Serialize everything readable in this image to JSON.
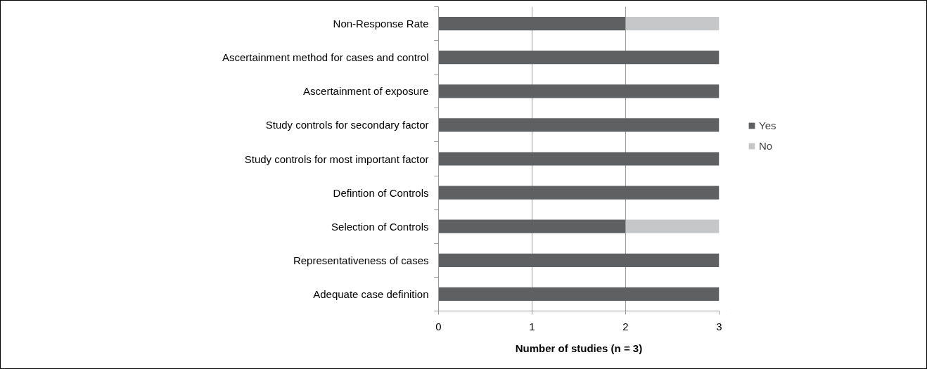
{
  "chart_data": {
    "type": "bar",
    "orientation": "horizontal",
    "stacked": true,
    "categories": [
      "Non-Response Rate",
      "Ascertainment method for cases and control",
      "Ascertainment of exposure",
      "Study controls for secondary factor",
      "Study controls for most important factor",
      "Defintion of Controls",
      "Selection of Controls",
      "Representativeness of cases",
      "Adequate case definition"
    ],
    "series": [
      {
        "name": "Yes",
        "color": "#5f6062",
        "values": [
          2,
          3,
          3,
          3,
          3,
          3,
          2,
          3,
          3
        ]
      },
      {
        "name": "No",
        "color": "#c6c7c8",
        "values": [
          1,
          0,
          0,
          0,
          0,
          0,
          1,
          0,
          0
        ]
      }
    ],
    "xlabel": "Number of studies (n = 3)",
    "xlim": [
      0,
      3
    ],
    "xticks": [
      0,
      1,
      2,
      3
    ],
    "grid": "x",
    "legend": "right"
  }
}
